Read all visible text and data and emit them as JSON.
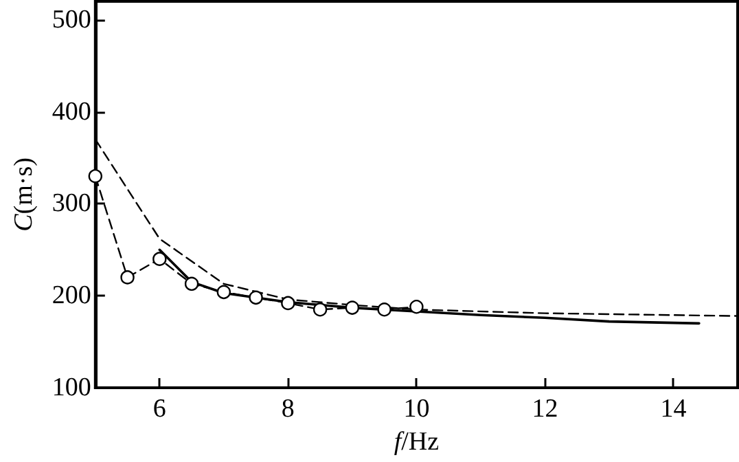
{
  "chart_data": {
    "type": "line",
    "xlabel": "f/Hz",
    "ylabel": "C(m·s)",
    "xlim": [
      5,
      15
    ],
    "xticks": [
      6,
      8,
      10,
      12,
      14
    ],
    "ylim": [
      100,
      520
    ],
    "yticks": [
      100,
      200,
      300,
      400,
      500
    ],
    "grid": false,
    "series": [
      {
        "color": "#000000",
        "line_style": "dashed",
        "marker": "circle",
        "x": [
          5,
          5.5,
          6,
          6.5,
          7,
          7.5,
          8,
          8.5,
          9,
          9.5,
          10
        ],
        "values": [
          330,
          220,
          240,
          213,
          204,
          198,
          192,
          185,
          187,
          185,
          188
        ]
      },
      {
        "color": "#000000",
        "line_style": "dashed",
        "marker": "none",
        "x": [
          5,
          6,
          7,
          8,
          9,
          10,
          12,
          15
        ],
        "values": [
          370,
          262,
          213,
          196,
          190,
          185,
          181,
          178
        ]
      },
      {
        "color": "#000000",
        "line_style": "solid",
        "marker": "none",
        "x": [
          6,
          6.5,
          7,
          8,
          9,
          10,
          11,
          12,
          13,
          14.4
        ],
        "values": [
          250,
          215,
          203,
          193,
          187,
          183,
          179,
          176,
          172,
          170
        ]
      }
    ]
  }
}
